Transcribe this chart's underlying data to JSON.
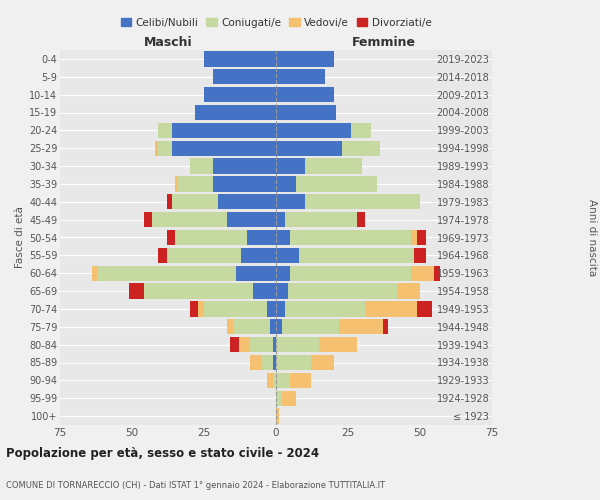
{
  "age_groups": [
    "100+",
    "95-99",
    "90-94",
    "85-89",
    "80-84",
    "75-79",
    "70-74",
    "65-69",
    "60-64",
    "55-59",
    "50-54",
    "45-49",
    "40-44",
    "35-39",
    "30-34",
    "25-29",
    "20-24",
    "15-19",
    "10-14",
    "5-9",
    "0-4"
  ],
  "birth_years": [
    "≤ 1923",
    "1924-1928",
    "1929-1933",
    "1934-1938",
    "1939-1943",
    "1944-1948",
    "1949-1953",
    "1954-1958",
    "1959-1963",
    "1964-1968",
    "1969-1973",
    "1974-1978",
    "1979-1983",
    "1984-1988",
    "1989-1993",
    "1994-1998",
    "1999-2003",
    "2004-2008",
    "2009-2013",
    "2014-2018",
    "2019-2023"
  ],
  "colors": {
    "celibe": "#4472c4",
    "coniugato": "#c5d9a0",
    "vedovo": "#f5c070",
    "divorziato": "#cc2222"
  },
  "maschi": {
    "celibe": [
      0,
      0,
      0,
      1,
      1,
      2,
      3,
      8,
      14,
      12,
      10,
      17,
      20,
      22,
      22,
      36,
      36,
      28,
      25,
      22,
      25
    ],
    "coniugato": [
      0,
      0,
      1,
      4,
      8,
      13,
      22,
      38,
      48,
      26,
      25,
      26,
      16,
      12,
      8,
      5,
      5,
      0,
      0,
      0,
      0
    ],
    "vedovo": [
      0,
      0,
      2,
      4,
      4,
      2,
      2,
      0,
      2,
      0,
      0,
      0,
      0,
      1,
      0,
      1,
      0,
      0,
      0,
      0,
      0
    ],
    "divorziato": [
      0,
      0,
      0,
      0,
      3,
      0,
      3,
      5,
      0,
      3,
      3,
      3,
      2,
      0,
      0,
      0,
      0,
      0,
      0,
      0,
      0
    ]
  },
  "femmine": {
    "celibe": [
      0,
      0,
      0,
      0,
      0,
      2,
      3,
      4,
      5,
      8,
      5,
      3,
      10,
      7,
      10,
      23,
      26,
      21,
      20,
      17,
      20
    ],
    "coniugato": [
      0,
      2,
      5,
      12,
      15,
      20,
      28,
      38,
      42,
      40,
      42,
      25,
      40,
      28,
      20,
      13,
      7,
      0,
      0,
      0,
      0
    ],
    "vedovo": [
      1,
      5,
      7,
      8,
      13,
      15,
      18,
      8,
      8,
      0,
      2,
      0,
      0,
      0,
      0,
      0,
      0,
      0,
      0,
      0,
      0
    ],
    "divorziato": [
      0,
      0,
      0,
      0,
      0,
      2,
      5,
      0,
      2,
      4,
      3,
      3,
      0,
      0,
      0,
      0,
      0,
      0,
      0,
      0,
      0
    ]
  },
  "title_main": "Popolazione per età, sesso e stato civile - 2024",
  "title_sub": "COMUNE DI TORNARECCIO (CH) - Dati ISTAT 1° gennaio 2024 - Elaborazione TUTTITALIA.IT",
  "xlabel_left": "Maschi",
  "xlabel_right": "Femmine",
  "ylabel_left": "Fasce di età",
  "ylabel_right": "Anni di nascita",
  "xlim": 75,
  "legend_labels": [
    "Celibi/Nubili",
    "Coniugati/e",
    "Vedovi/e",
    "Divorziati/e"
  ],
  "bg_color": "#f0f0f0",
  "plot_bg": "#e8e8e8",
  "bar_height": 0.85
}
